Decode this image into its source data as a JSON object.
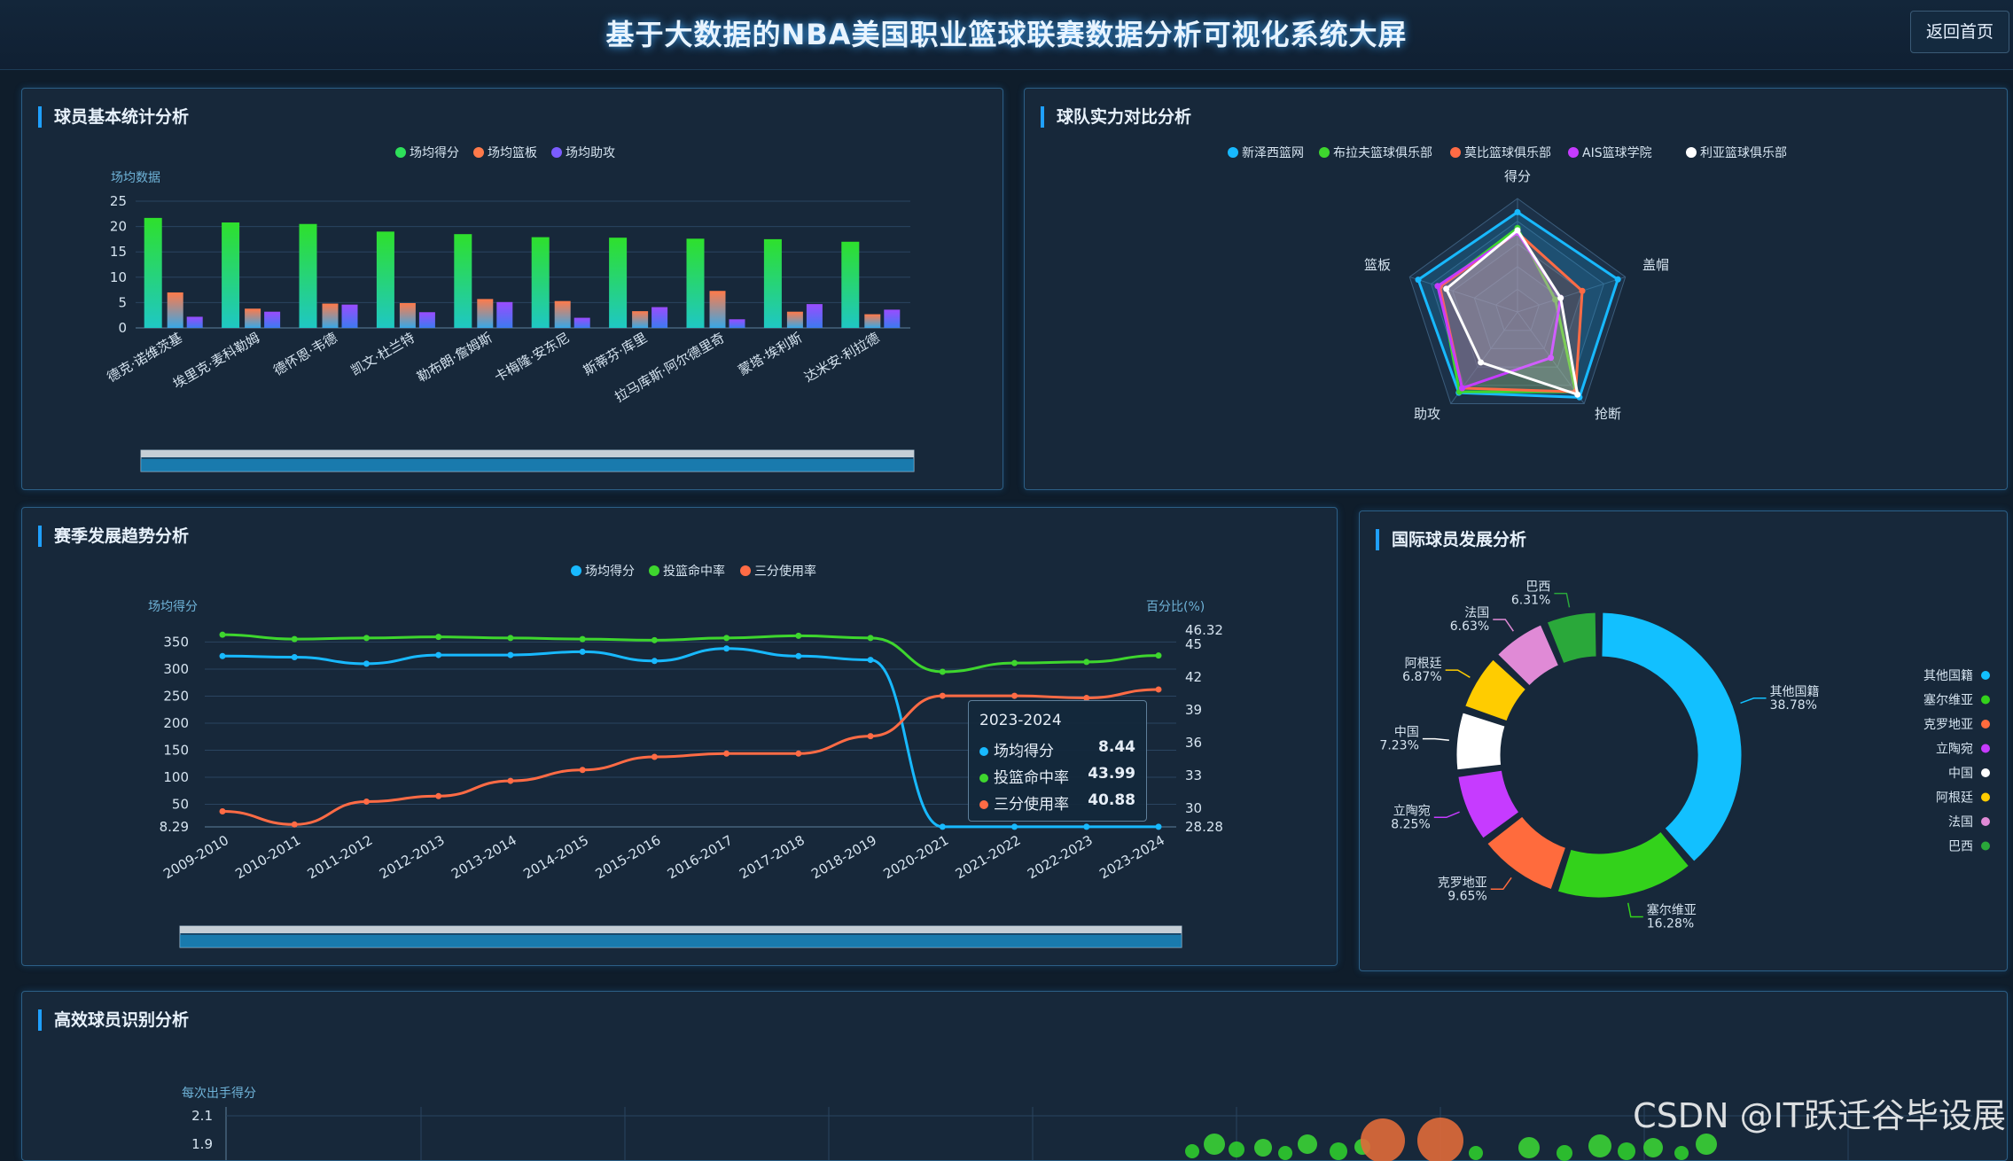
{
  "header": {
    "title": "基于大数据的NBA美国职业篮球联赛数据分析可视化系统大屏",
    "back_label": "返回首页"
  },
  "panels": {
    "player_stats": "球员基本统计分析",
    "team_compare": "球队实力对比分析",
    "season_trend": "赛季发展趋势分析",
    "intl": "国际球员发展分析",
    "efficient": "高效球员识别分析"
  },
  "watermark": "CSDN @IT跃迁谷毕设展",
  "tooltip": {
    "title": "2023-2024",
    "rows": [
      {
        "label": "场均得分",
        "value": "8.44",
        "color": "#18b9ff"
      },
      {
        "label": "投篮命中率",
        "value": "43.99",
        "color": "#3ed62e"
      },
      {
        "label": "三分使用率",
        "value": "40.88",
        "color": "#ff6b45"
      }
    ]
  },
  "chart_data": [
    {
      "type": "bar",
      "legend": [
        "场均得分",
        "场均篮板",
        "场均助攻"
      ],
      "ylabel": "场均数据",
      "ylim": [
        0,
        25
      ],
      "yticks": [
        0,
        5,
        10,
        15,
        20,
        25
      ],
      "categories": [
        "德克·诺维茨基",
        "埃里克·麦科勒姆",
        "德怀恩·韦德",
        "凯文·杜兰特",
        "勒布朗·詹姆斯",
        "卡梅隆·安东尼",
        "斯蒂芬·库里",
        "拉马库斯·阿尔德里奇",
        "蒙塔·埃利斯",
        "达米安·利拉德"
      ],
      "series": [
        {
          "name": "场均得分",
          "color": "#2ee05a",
          "values": [
            21.7,
            20.8,
            20.5,
            19,
            18.5,
            17.9,
            17.8,
            17.6,
            17.5,
            17
          ]
        },
        {
          "name": "场均篮板",
          "color": "#ff7a4a",
          "values": [
            7,
            3.8,
            4.8,
            4.9,
            5.7,
            5.3,
            3.3,
            7.3,
            3.2,
            2.7
          ]
        },
        {
          "name": "场均助攻",
          "color": "#7b5cff",
          "values": [
            2.2,
            3.2,
            4.6,
            3.1,
            5.1,
            2,
            4.1,
            1.7,
            4.7,
            3.6
          ]
        }
      ]
    },
    {
      "type": "radar",
      "indicators": [
        "得分",
        "盖帽",
        "抢断",
        "助攻",
        "篮板"
      ],
      "series": [
        {
          "name": "新泽西篮网",
          "color": "#18b9ff",
          "values": [
            0.88,
            0.93,
            0.93,
            0.88,
            0.92
          ]
        },
        {
          "name": "布拉夫篮球俱乐部",
          "color": "#3ed62e",
          "values": [
            0.74,
            0.35,
            0.87,
            0.87,
            0.72
          ]
        },
        {
          "name": "莫比篮球俱乐部",
          "color": "#ff6b45",
          "values": [
            0.7,
            0.6,
            0.87,
            0.83,
            0.72
          ]
        },
        {
          "name": "AIS篮球学院",
          "color": "#c63bff",
          "values": [
            0.7,
            0.4,
            0.5,
            0.83,
            0.74
          ]
        },
        {
          "name": "利亚篮球俱乐部",
          "color": "#ffffff",
          "values": [
            0.72,
            0.4,
            0.9,
            0.55,
            0.66
          ]
        }
      ]
    },
    {
      "type": "line",
      "legend": [
        "场均得分",
        "投篮命中率",
        "三分使用率"
      ],
      "ylabel_left": "场均得分",
      "ylabel_right": "百分比(%)",
      "left_ticks": [
        "8.29",
        "50",
        "100",
        "150",
        "200",
        "250",
        "300",
        "350"
      ],
      "right_ticks": [
        "28.28",
        "30",
        "33",
        "36",
        "39",
        "42",
        "45",
        "46.32"
      ],
      "left_range": [
        8.29,
        372
      ],
      "right_range": [
        28.28,
        46.32
      ],
      "x": [
        "2009-2010",
        "2010-2011",
        "2011-2012",
        "2012-2013",
        "2013-2014",
        "2014-2015",
        "2015-2016",
        "2016-2017",
        "2017-2018",
        "2018-2019",
        "2020-2021",
        "2021-2022",
        "2022-2023",
        "2023-2024"
      ],
      "series": [
        {
          "name": "场均得分",
          "axis": "left",
          "color": "#18b9ff",
          "values": [
            324,
            322,
            310,
            326,
            326,
            332,
            315,
            338,
            324,
            317,
            8.5,
            8.5,
            8.5,
            8.44
          ]
        },
        {
          "name": "投篮命中率",
          "axis": "right",
          "color": "#3ed62e",
          "values": [
            45.9,
            45.5,
            45.6,
            45.7,
            45.6,
            45.5,
            45.4,
            45.6,
            45.8,
            45.6,
            42.5,
            43.3,
            43.4,
            43.99
          ]
        },
        {
          "name": "三分使用率",
          "axis": "right",
          "color": "#ff6b45",
          "values": [
            29.7,
            28.5,
            30.6,
            31.1,
            32.5,
            33.5,
            34.7,
            35.0,
            35.0,
            36.6,
            40.3,
            40.3,
            40.1,
            40.88
          ]
        }
      ]
    },
    {
      "type": "pie",
      "slices": [
        {
          "name": "其他国籍",
          "value": 38.78,
          "label": "38.78%",
          "color": "#12c0ff"
        },
        {
          "name": "塞尔维亚",
          "value": 16.28,
          "label": "16.28%",
          "color": "#33d21b"
        },
        {
          "name": "克罗地亚",
          "value": 9.65,
          "label": "9.65%",
          "color": "#ff6b3d"
        },
        {
          "name": "立陶宛",
          "value": 8.25,
          "label": "8.25%",
          "color": "#c63bff"
        },
        {
          "name": "中国",
          "value": 7.23,
          "label": "7.23%",
          "color": "#ffffff"
        },
        {
          "name": "阿根廷",
          "value": 6.87,
          "label": "6.87%",
          "color": "#ffcc00"
        },
        {
          "name": "法国",
          "value": 6.63,
          "label": "6.63%",
          "color": "#e08ad6"
        },
        {
          "name": "巴西",
          "value": 6.31,
          "label": "6.31%",
          "color": "#2aa83a"
        }
      ]
    },
    {
      "type": "scatter",
      "ylabel": "每次出手得分",
      "yticks": [
        "2.1",
        "1.9"
      ]
    }
  ]
}
